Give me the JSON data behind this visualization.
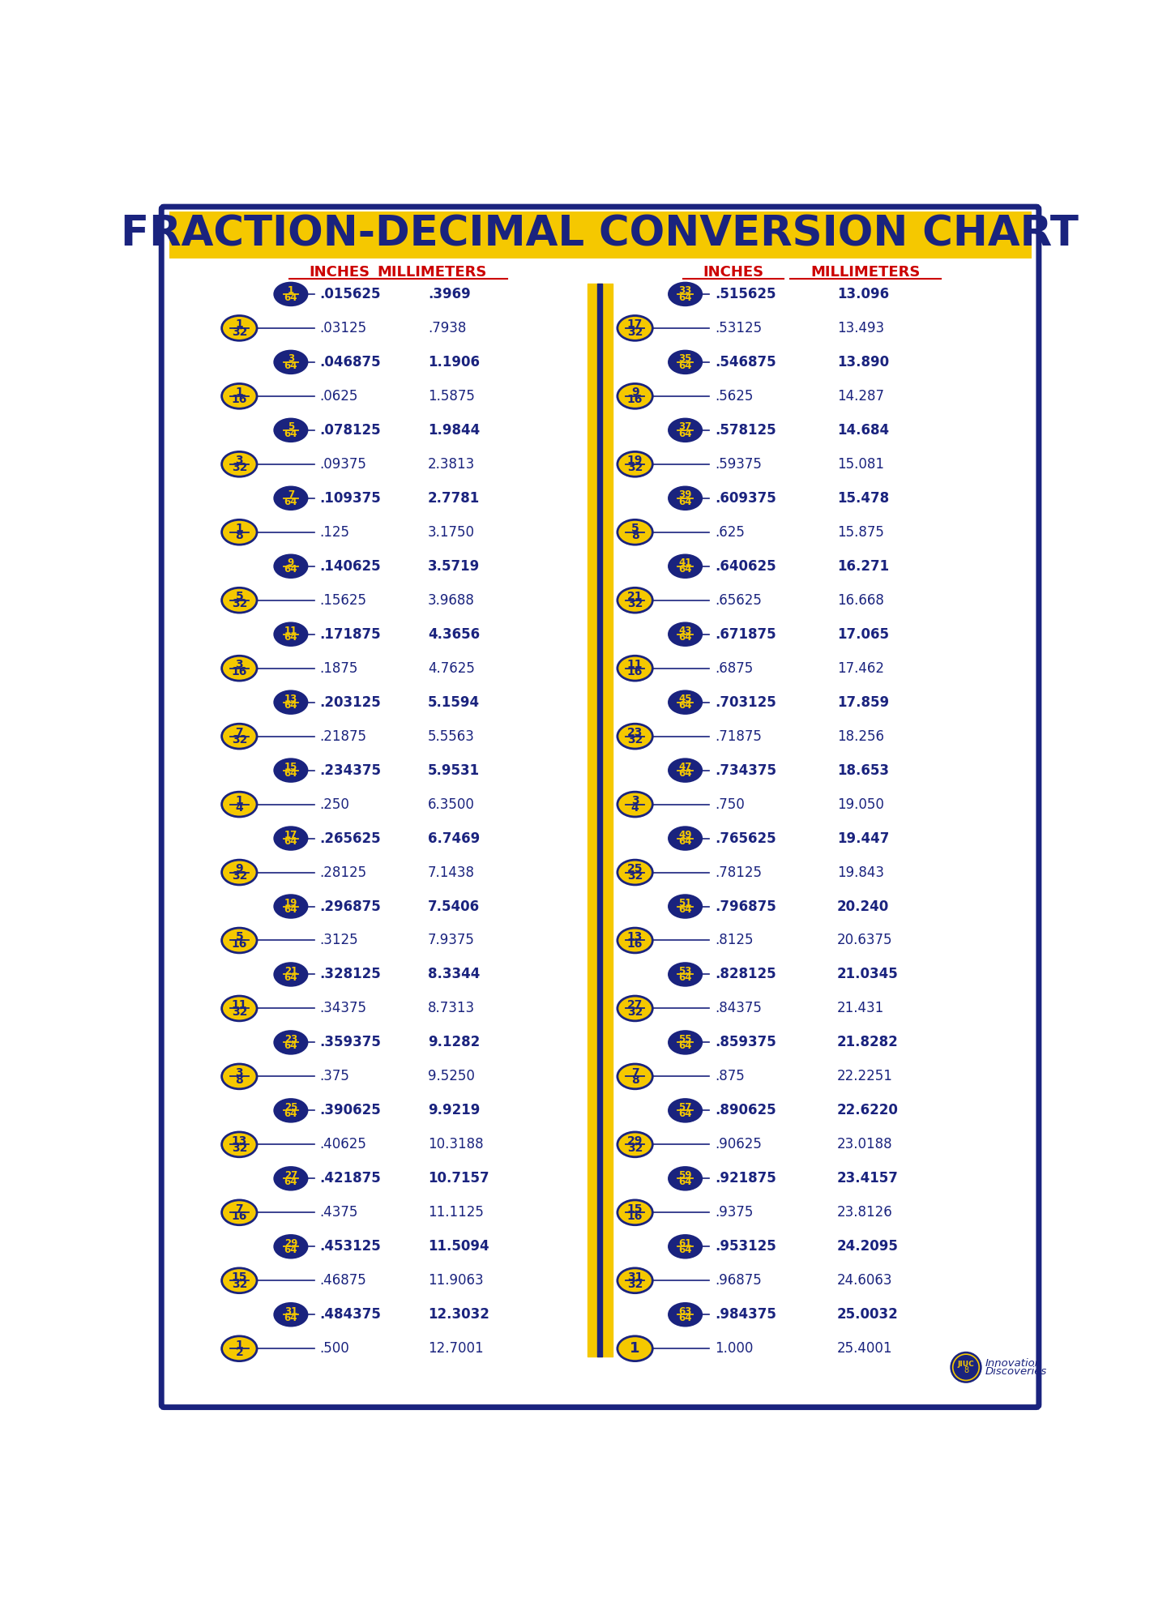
{
  "title": "FRACTION-DECIMAL CONVERSION CHART",
  "title_bg": "#F5C800",
  "title_color": "#1a237e",
  "bg_color": "#ffffff",
  "border_color": "#1a237e",
  "left_col_header_inches": "INCHES",
  "left_col_header_mm": "MILLIMETERS",
  "right_col_header_inches": "INCHES",
  "right_col_header_mm": "MILLIMETERS",
  "rows_left": [
    {
      "frac": "1/64",
      "num": 1,
      "den": 64,
      "bold": true,
      "inches": ".015625",
      "mm": ".3969"
    },
    {
      "frac": "1/32",
      "num": 1,
      "den": 32,
      "bold": false,
      "inches": ".03125",
      "mm": ".7938"
    },
    {
      "frac": "3/64",
      "num": 3,
      "den": 64,
      "bold": true,
      "inches": ".046875",
      "mm": "1.1906"
    },
    {
      "frac": "1/16",
      "num": 1,
      "den": 16,
      "bold": false,
      "inches": ".0625",
      "mm": "1.5875"
    },
    {
      "frac": "5/64",
      "num": 5,
      "den": 64,
      "bold": true,
      "inches": ".078125",
      "mm": "1.9844"
    },
    {
      "frac": "3/32",
      "num": 3,
      "den": 32,
      "bold": false,
      "inches": ".09375",
      "mm": "2.3813"
    },
    {
      "frac": "7/64",
      "num": 7,
      "den": 64,
      "bold": true,
      "inches": ".109375",
      "mm": "2.7781"
    },
    {
      "frac": "1/8",
      "num": 1,
      "den": 8,
      "bold": false,
      "inches": ".125",
      "mm": "3.1750"
    },
    {
      "frac": "9/64",
      "num": 9,
      "den": 64,
      "bold": true,
      "inches": ".140625",
      "mm": "3.5719"
    },
    {
      "frac": "5/32",
      "num": 5,
      "den": 32,
      "bold": false,
      "inches": ".15625",
      "mm": "3.9688"
    },
    {
      "frac": "11/64",
      "num": 11,
      "den": 64,
      "bold": true,
      "inches": ".171875",
      "mm": "4.3656"
    },
    {
      "frac": "3/16",
      "num": 3,
      "den": 16,
      "bold": false,
      "inches": ".1875",
      "mm": "4.7625"
    },
    {
      "frac": "13/64",
      "num": 13,
      "den": 64,
      "bold": true,
      "inches": ".203125",
      "mm": "5.1594"
    },
    {
      "frac": "7/32",
      "num": 7,
      "den": 32,
      "bold": false,
      "inches": ".21875",
      "mm": "5.5563"
    },
    {
      "frac": "15/64",
      "num": 15,
      "den": 64,
      "bold": true,
      "inches": ".234375",
      "mm": "5.9531"
    },
    {
      "frac": "1/4",
      "num": 1,
      "den": 4,
      "bold": false,
      "inches": ".250",
      "mm": "6.3500"
    },
    {
      "frac": "17/64",
      "num": 17,
      "den": 64,
      "bold": true,
      "inches": ".265625",
      "mm": "6.7469"
    },
    {
      "frac": "9/32",
      "num": 9,
      "den": 32,
      "bold": false,
      "inches": ".28125",
      "mm": "7.1438"
    },
    {
      "frac": "19/64",
      "num": 19,
      "den": 64,
      "bold": true,
      "inches": ".296875",
      "mm": "7.5406"
    },
    {
      "frac": "5/16",
      "num": 5,
      "den": 16,
      "bold": false,
      "inches": ".3125",
      "mm": "7.9375"
    },
    {
      "frac": "21/64",
      "num": 21,
      "den": 64,
      "bold": true,
      "inches": ".328125",
      "mm": "8.3344"
    },
    {
      "frac": "11/32",
      "num": 11,
      "den": 32,
      "bold": false,
      "inches": ".34375",
      "mm": "8.7313"
    },
    {
      "frac": "23/64",
      "num": 23,
      "den": 64,
      "bold": true,
      "inches": ".359375",
      "mm": "9.1282"
    },
    {
      "frac": "3/8",
      "num": 3,
      "den": 8,
      "bold": false,
      "inches": ".375",
      "mm": "9.5250"
    },
    {
      "frac": "25/64",
      "num": 25,
      "den": 64,
      "bold": true,
      "inches": ".390625",
      "mm": "9.9219"
    },
    {
      "frac": "13/32",
      "num": 13,
      "den": 32,
      "bold": false,
      "inches": ".40625",
      "mm": "10.3188"
    },
    {
      "frac": "27/64",
      "num": 27,
      "den": 64,
      "bold": true,
      "inches": ".421875",
      "mm": "10.7157"
    },
    {
      "frac": "7/16",
      "num": 7,
      "den": 16,
      "bold": false,
      "inches": ".4375",
      "mm": "11.1125"
    },
    {
      "frac": "29/64",
      "num": 29,
      "den": 64,
      "bold": true,
      "inches": ".453125",
      "mm": "11.5094"
    },
    {
      "frac": "15/32",
      "num": 15,
      "den": 32,
      "bold": false,
      "inches": ".46875",
      "mm": "11.9063"
    },
    {
      "frac": "31/64",
      "num": 31,
      "den": 64,
      "bold": true,
      "inches": ".484375",
      "mm": "12.3032"
    },
    {
      "frac": "1/2",
      "num": 1,
      "den": 2,
      "bold": false,
      "inches": ".500",
      "mm": "12.7001"
    }
  ],
  "rows_right": [
    {
      "frac": "33/64",
      "num": 33,
      "den": 64,
      "bold": true,
      "inches": ".515625",
      "mm": "13.096"
    },
    {
      "frac": "17/32",
      "num": 17,
      "den": 32,
      "bold": false,
      "inches": ".53125",
      "mm": "13.493"
    },
    {
      "frac": "35/64",
      "num": 35,
      "den": 64,
      "bold": true,
      "inches": ".546875",
      "mm": "13.890"
    },
    {
      "frac": "9/16",
      "num": 9,
      "den": 16,
      "bold": false,
      "inches": ".5625",
      "mm": "14.287"
    },
    {
      "frac": "37/64",
      "num": 37,
      "den": 64,
      "bold": true,
      "inches": ".578125",
      "mm": "14.684"
    },
    {
      "frac": "19/32",
      "num": 19,
      "den": 32,
      "bold": false,
      "inches": ".59375",
      "mm": "15.081"
    },
    {
      "frac": "39/64",
      "num": 39,
      "den": 64,
      "bold": true,
      "inches": ".609375",
      "mm": "15.478"
    },
    {
      "frac": "5/8",
      "num": 5,
      "den": 8,
      "bold": false,
      "inches": ".625",
      "mm": "15.875"
    },
    {
      "frac": "41/64",
      "num": 41,
      "den": 64,
      "bold": true,
      "inches": ".640625",
      "mm": "16.271"
    },
    {
      "frac": "21/32",
      "num": 21,
      "den": 32,
      "bold": false,
      "inches": ".65625",
      "mm": "16.668"
    },
    {
      "frac": "43/64",
      "num": 43,
      "den": 64,
      "bold": true,
      "inches": ".671875",
      "mm": "17.065"
    },
    {
      "frac": "11/16",
      "num": 11,
      "den": 16,
      "bold": false,
      "inches": ".6875",
      "mm": "17.462"
    },
    {
      "frac": "45/64",
      "num": 45,
      "den": 64,
      "bold": true,
      "inches": ".703125",
      "mm": "17.859"
    },
    {
      "frac": "23/32",
      "num": 23,
      "den": 32,
      "bold": false,
      "inches": ".71875",
      "mm": "18.256"
    },
    {
      "frac": "47/64",
      "num": 47,
      "den": 64,
      "bold": true,
      "inches": ".734375",
      "mm": "18.653"
    },
    {
      "frac": "3/4",
      "num": 3,
      "den": 4,
      "bold": false,
      "inches": ".750",
      "mm": "19.050"
    },
    {
      "frac": "49/64",
      "num": 49,
      "den": 64,
      "bold": true,
      "inches": ".765625",
      "mm": "19.447"
    },
    {
      "frac": "25/32",
      "num": 25,
      "den": 32,
      "bold": false,
      "inches": ".78125",
      "mm": "19.843"
    },
    {
      "frac": "51/64",
      "num": 51,
      "den": 64,
      "bold": true,
      "inches": ".796875",
      "mm": "20.240"
    },
    {
      "frac": "13/16",
      "num": 13,
      "den": 16,
      "bold": false,
      "inches": ".8125",
      "mm": "20.6375"
    },
    {
      "frac": "53/64",
      "num": 53,
      "den": 64,
      "bold": true,
      "inches": ".828125",
      "mm": "21.0345"
    },
    {
      "frac": "27/32",
      "num": 27,
      "den": 32,
      "bold": false,
      "inches": ".84375",
      "mm": "21.431"
    },
    {
      "frac": "55/64",
      "num": 55,
      "den": 64,
      "bold": true,
      "inches": ".859375",
      "mm": "21.8282"
    },
    {
      "frac": "7/8",
      "num": 7,
      "den": 8,
      "bold": false,
      "inches": ".875",
      "mm": "22.2251"
    },
    {
      "frac": "57/64",
      "num": 57,
      "den": 64,
      "bold": true,
      "inches": ".890625",
      "mm": "22.6220"
    },
    {
      "frac": "29/32",
      "num": 29,
      "den": 32,
      "bold": false,
      "inches": ".90625",
      "mm": "23.0188"
    },
    {
      "frac": "59/64",
      "num": 59,
      "den": 64,
      "bold": true,
      "inches": ".921875",
      "mm": "23.4157"
    },
    {
      "frac": "15/16",
      "num": 15,
      "den": 16,
      "bold": false,
      "inches": ".9375",
      "mm": "23.8126"
    },
    {
      "frac": "61/64",
      "num": 61,
      "den": 64,
      "bold": true,
      "inches": ".953125",
      "mm": "24.2095"
    },
    {
      "frac": "31/32",
      "num": 31,
      "den": 32,
      "bold": false,
      "inches": ".96875",
      "mm": "24.6063"
    },
    {
      "frac": "63/64",
      "num": 63,
      "den": 64,
      "bold": true,
      "inches": ".984375",
      "mm": "25.0032"
    },
    {
      "frac": "1",
      "num": 1,
      "den": 1,
      "bold": false,
      "inches": "1.000",
      "mm": "25.4001"
    }
  ],
  "navy": "#1a237e",
  "yellow": "#F5C800",
  "red": "#cc0000"
}
